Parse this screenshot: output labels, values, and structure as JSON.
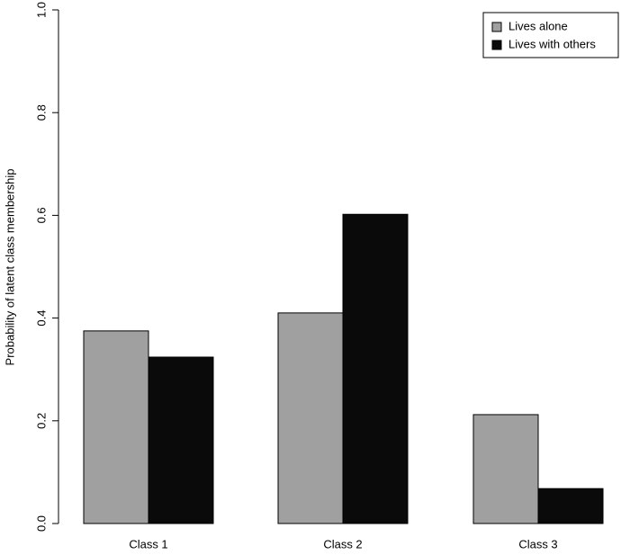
{
  "chart_data": {
    "type": "bar",
    "y_label": "Probability of latent class membership",
    "categories": [
      "Class 1",
      "Class 2",
      "Class 3"
    ],
    "series": [
      {
        "name": "Lives alone",
        "color": "#a0a0a0",
        "values": [
          0.375,
          0.41,
          0.212
        ]
      },
      {
        "name": "Lives with others",
        "color": "#0a0a0a",
        "values": [
          0.324,
          0.602,
          0.068
        ]
      }
    ],
    "ylim": [
      0,
      1
    ],
    "yticks": [
      {
        "value": 0,
        "label": "0.0"
      },
      0.2,
      0.4,
      0.6,
      0.8,
      {
        "value": 1,
        "label": "1.0"
      }
    ],
    "legend": "top-right"
  }
}
